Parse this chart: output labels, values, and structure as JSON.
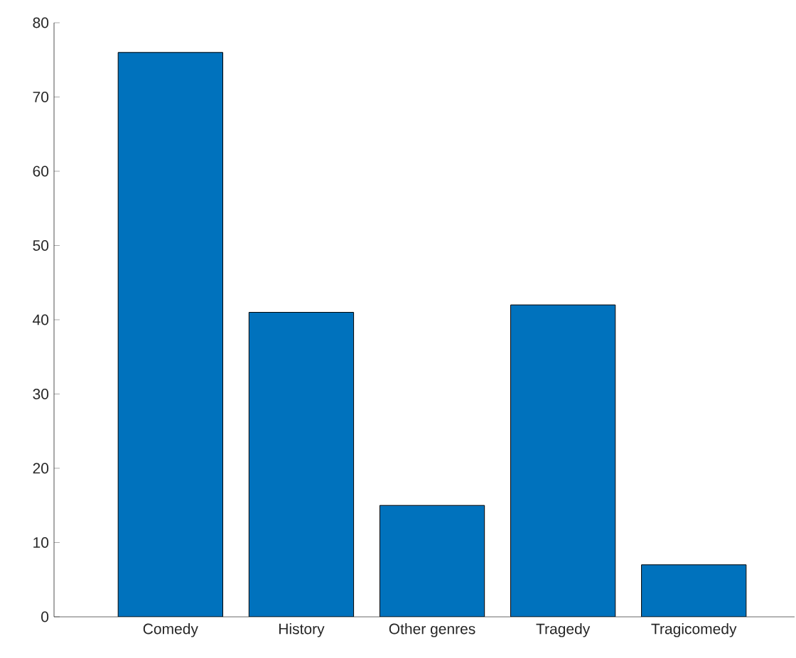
{
  "chart_data": {
    "type": "bar",
    "categories": [
      "Comedy",
      "History",
      "Other genres",
      "Tragedy",
      "Tragicomedy"
    ],
    "values": [
      76,
      41,
      15,
      42,
      7
    ],
    "color": "#0072bd",
    "ylim": [
      0,
      80
    ],
    "yticks": [
      0,
      10,
      20,
      30,
      40,
      50,
      60,
      70,
      80
    ]
  }
}
